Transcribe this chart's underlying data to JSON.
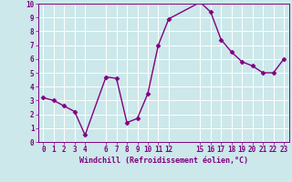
{
  "x": [
    0,
    1,
    2,
    3,
    4,
    6,
    7,
    8,
    9,
    10,
    11,
    12,
    15,
    16,
    17,
    18,
    19,
    20,
    21,
    22,
    23
  ],
  "y": [
    3.2,
    3.0,
    2.6,
    2.2,
    0.5,
    4.7,
    4.6,
    1.4,
    1.7,
    3.5,
    7.0,
    8.9,
    10.1,
    9.4,
    7.4,
    6.5,
    5.8,
    5.5,
    5.0,
    5.0,
    6.0
  ],
  "line_color": "#800080",
  "marker": "D",
  "marker_size": 2.5,
  "bg_color": "#cce8ea",
  "grid_color": "#ffffff",
  "xlabel": "Windchill (Refroidissement éolien,°C)",
  "xlabel_color": "#800080",
  "tick_color": "#800080",
  "ylim": [
    0,
    10
  ],
  "xlim": [
    -0.5,
    23.5
  ],
  "xticks": [
    0,
    1,
    2,
    3,
    4,
    6,
    7,
    8,
    9,
    10,
    11,
    12,
    15,
    16,
    17,
    18,
    19,
    20,
    21,
    22,
    23
  ],
  "yticks": [
    0,
    1,
    2,
    3,
    4,
    5,
    6,
    7,
    8,
    9,
    10
  ],
  "figsize": [
    3.2,
    2.0
  ],
  "dpi": 100
}
